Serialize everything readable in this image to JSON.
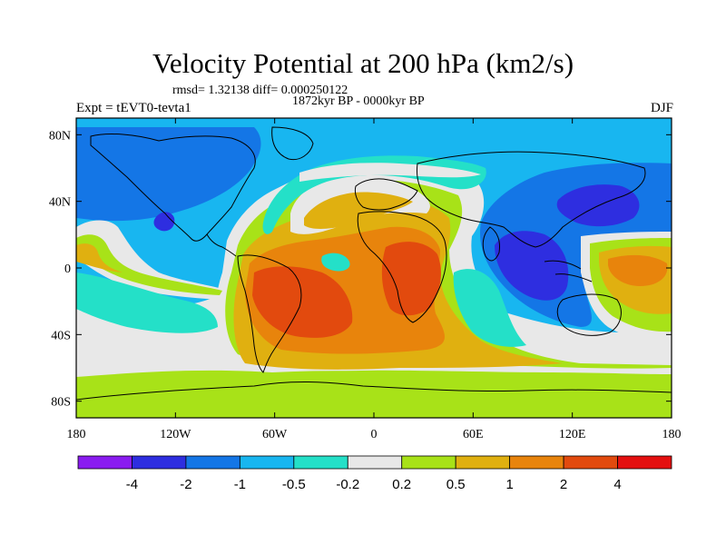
{
  "title": "Velocity Potential at 200 hPa (km2/s)",
  "stats_line": "rmsd= 1.32138 diff= 0.000250122",
  "period_line": "1872kyr BP - 0000kyr BP",
  "experiment_label": "Expt = tEVT0-tevta1",
  "season_label": "DJF",
  "colors": {
    "-5": "#8a1cf0",
    "-4": "#2e2ee0",
    "-3": "#1476e6",
    "-2": "#18b6f0",
    "-1": "#24e0c8",
    "0": "#e8e8e8",
    "1": "#a8e218",
    "2": "#e0b010",
    "3": "#e8840c",
    "4": "#e24a0e",
    "5": "#e41010"
  },
  "chart_data": {
    "type": "filled-contour-map",
    "variable": "Velocity Potential at 200 hPa",
    "units": "km2/s",
    "projection": "cylindrical-equidistant",
    "lon_range": [
      -180,
      180
    ],
    "lat_range": [
      -90,
      90
    ],
    "y_ticks": [
      {
        "value": 80,
        "label": "80N"
      },
      {
        "value": 40,
        "label": "40N"
      },
      {
        "value": 0,
        "label": "0"
      },
      {
        "value": -40,
        "label": "40S"
      },
      {
        "value": -80,
        "label": "80S"
      }
    ],
    "x_ticks": [
      {
        "value": -180,
        "label": "180"
      },
      {
        "value": -120,
        "label": "120W"
      },
      {
        "value": -60,
        "label": "60W"
      },
      {
        "value": 0,
        "label": "0"
      },
      {
        "value": 60,
        "label": "60E"
      },
      {
        "value": 120,
        "label": "120E"
      },
      {
        "value": 180,
        "label": "180"
      }
    ],
    "contour_levels": [
      "-4",
      "-2",
      "-1",
      "-0.5",
      "-0.2",
      "0.2",
      "0.5",
      "1",
      "2",
      "4"
    ],
    "color_bins": 11,
    "field_features": [
      {
        "name": "west-pacific-minimum",
        "lon": 130,
        "lat": 35,
        "value": -3
      },
      {
        "name": "indonesia-minimum",
        "lon": 105,
        "lat": 5,
        "value": -3
      },
      {
        "name": "south-america-maximum",
        "lon": -45,
        "lat": -20,
        "value": 3
      },
      {
        "name": "africa-maximum",
        "lon": 30,
        "lat": -15,
        "value": 3
      },
      {
        "name": "south-pacific-maximum",
        "lon": 150,
        "lat": -5,
        "value": 2
      }
    ]
  }
}
